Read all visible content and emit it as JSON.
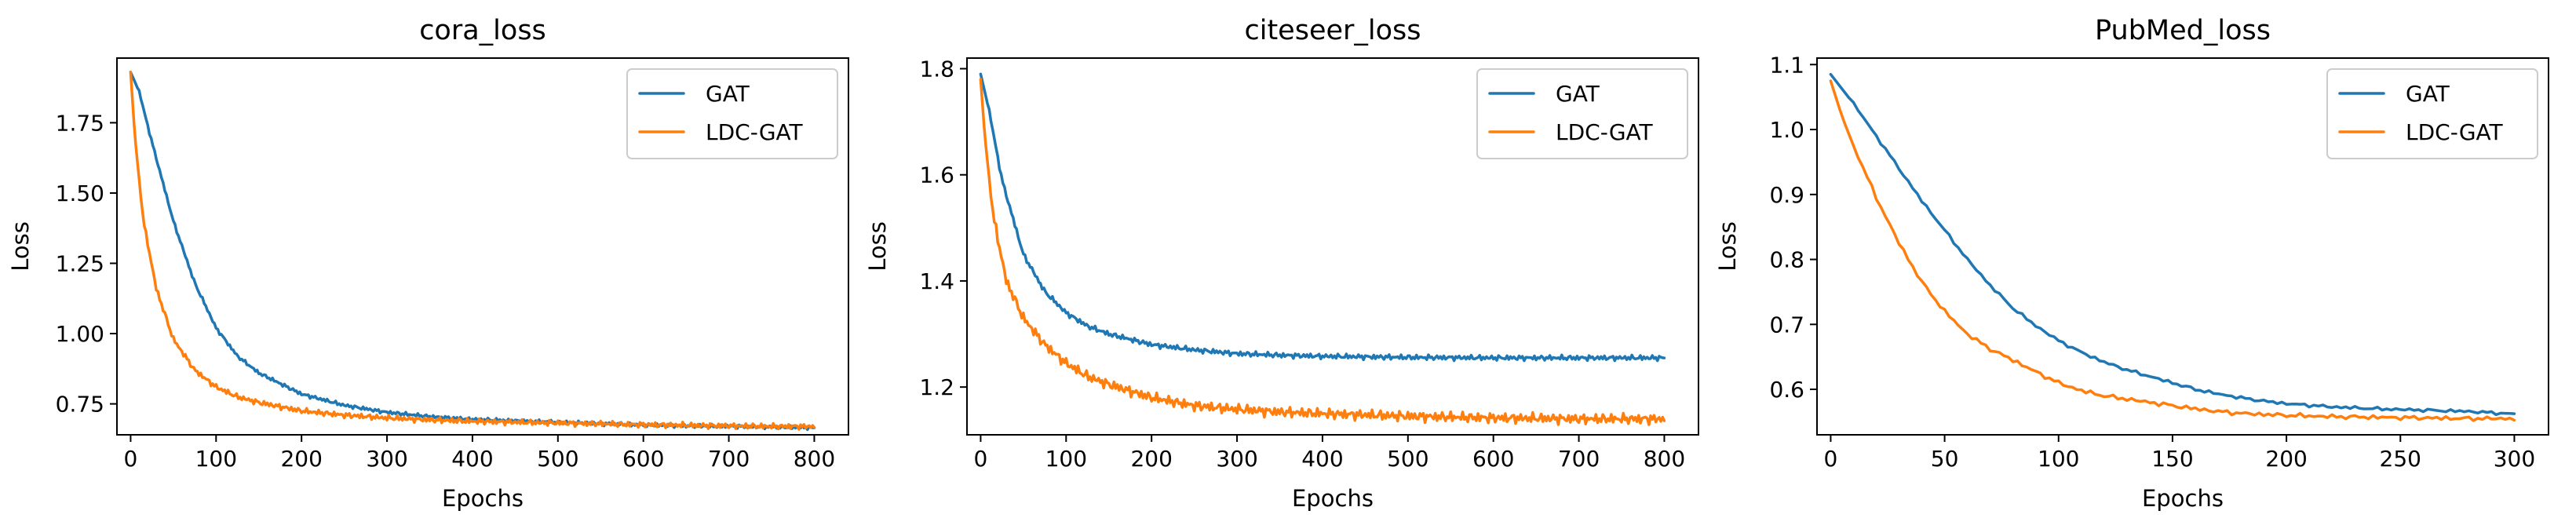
{
  "figure": {
    "background": "#ffffff"
  },
  "chart_data": [
    {
      "type": "line",
      "title": "cora_loss",
      "xlabel": "Epochs",
      "ylabel": "Loss",
      "xlim": [
        -16,
        840
      ],
      "ylim": [
        0.64,
        1.98
      ],
      "xticks": [
        0,
        100,
        200,
        300,
        400,
        500,
        600,
        700,
        800
      ],
      "xtick_labels": [
        "0",
        "100",
        "200",
        "300",
        "400",
        "500",
        "600",
        "700",
        "800"
      ],
      "yticks": [
        0.75,
        1.0,
        1.25,
        1.5,
        1.75
      ],
      "ytick_labels": [
        "0.75",
        "1.00",
        "1.25",
        "1.50",
        "1.75"
      ],
      "legend": {
        "position": "top-right",
        "entries": [
          "GAT",
          "LDC-GAT"
        ]
      },
      "series": [
        {
          "name": "GAT",
          "color": "#1f77b4",
          "noise": 0.004,
          "x": [
            0,
            10,
            25,
            50,
            75,
            100,
            125,
            150,
            200,
            250,
            300,
            350,
            400,
            450,
            500,
            550,
            600,
            650,
            700,
            750,
            800
          ],
          "y": [
            1.93,
            1.86,
            1.68,
            1.4,
            1.18,
            1.02,
            0.92,
            0.86,
            0.785,
            0.745,
            0.72,
            0.705,
            0.695,
            0.69,
            0.685,
            0.68,
            0.675,
            0.672,
            0.67,
            0.668,
            0.665
          ]
        },
        {
          "name": "LDC-GAT",
          "color": "#ff7f0e",
          "noise": 0.006,
          "x": [
            0,
            5,
            15,
            30,
            50,
            75,
            100,
            125,
            150,
            200,
            250,
            300,
            350,
            400,
            450,
            500,
            550,
            600,
            650,
            700,
            750,
            800
          ],
          "y": [
            1.93,
            1.7,
            1.4,
            1.16,
            0.98,
            0.87,
            0.81,
            0.775,
            0.755,
            0.725,
            0.71,
            0.7,
            0.693,
            0.688,
            0.685,
            0.682,
            0.679,
            0.676,
            0.674,
            0.672,
            0.67,
            0.67
          ]
        }
      ]
    },
    {
      "type": "line",
      "title": "citeseer_loss",
      "xlabel": "Epochs",
      "ylabel": "Loss",
      "xlim": [
        -16,
        840
      ],
      "ylim": [
        1.11,
        1.82
      ],
      "xticks": [
        0,
        100,
        200,
        300,
        400,
        500,
        600,
        700,
        800
      ],
      "xtick_labels": [
        "0",
        "100",
        "200",
        "300",
        "400",
        "500",
        "600",
        "700",
        "800"
      ],
      "yticks": [
        1.2,
        1.4,
        1.6,
        1.8
      ],
      "ytick_labels": [
        "1.2",
        "1.4",
        "1.6",
        "1.8"
      ],
      "legend": {
        "position": "top-right",
        "entries": [
          "GAT",
          "LDC-GAT"
        ]
      },
      "series": [
        {
          "name": "GAT",
          "color": "#1f77b4",
          "noise": 0.003,
          "x": [
            0,
            10,
            25,
            50,
            75,
            100,
            125,
            150,
            200,
            250,
            300,
            350,
            400,
            500,
            600,
            700,
            800
          ],
          "y": [
            1.79,
            1.72,
            1.59,
            1.45,
            1.38,
            1.34,
            1.315,
            1.3,
            1.28,
            1.27,
            1.263,
            1.26,
            1.258,
            1.256,
            1.255,
            1.255,
            1.255
          ]
        },
        {
          "name": "LDC-GAT",
          "color": "#ff7f0e",
          "noise": 0.006,
          "x": [
            0,
            5,
            15,
            30,
            50,
            75,
            100,
            125,
            150,
            200,
            250,
            300,
            350,
            400,
            500,
            600,
            700,
            800
          ],
          "y": [
            1.78,
            1.67,
            1.52,
            1.4,
            1.33,
            1.28,
            1.245,
            1.22,
            1.205,
            1.18,
            1.165,
            1.158,
            1.153,
            1.15,
            1.145,
            1.142,
            1.14,
            1.14
          ]
        }
      ]
    },
    {
      "type": "line",
      "title": "PubMed_loss",
      "xlabel": "Epochs",
      "ylabel": "Loss",
      "xlim": [
        -6,
        315
      ],
      "ylim": [
        0.53,
        1.11
      ],
      "xticks": [
        0,
        50,
        100,
        150,
        200,
        250,
        300
      ],
      "xtick_labels": [
        "0",
        "50",
        "100",
        "150",
        "200",
        "250",
        "300"
      ],
      "yticks": [
        0.6,
        0.7,
        0.8,
        0.9,
        1.0,
        1.1
      ],
      "ytick_labels": [
        "0.6",
        "0.7",
        "0.8",
        "0.9",
        "1.0",
        "1.1"
      ],
      "legend": {
        "position": "top-right",
        "entries": [
          "GAT",
          "LDC-GAT"
        ]
      },
      "series": [
        {
          "name": "GAT",
          "color": "#1f77b4",
          "noise": 0.0015,
          "x": [
            0,
            10,
            20,
            30,
            40,
            50,
            60,
            70,
            80,
            90,
            100,
            110,
            120,
            130,
            140,
            150,
            160,
            170,
            180,
            190,
            200,
            220,
            240,
            260,
            280,
            300
          ],
          "y": [
            1.085,
            1.04,
            0.99,
            0.94,
            0.89,
            0.845,
            0.8,
            0.76,
            0.725,
            0.698,
            0.675,
            0.657,
            0.642,
            0.63,
            0.62,
            0.61,
            0.6,
            0.593,
            0.587,
            0.582,
            0.578,
            0.573,
            0.57,
            0.568,
            0.566,
            0.562
          ]
        },
        {
          "name": "LDC-GAT",
          "color": "#ff7f0e",
          "noise": 0.002,
          "x": [
            0,
            5,
            10,
            20,
            30,
            40,
            50,
            60,
            70,
            80,
            90,
            100,
            110,
            120,
            130,
            140,
            150,
            160,
            170,
            180,
            200,
            220,
            240,
            260,
            280,
            300
          ],
          "y": [
            1.075,
            1.02,
            0.975,
            0.895,
            0.825,
            0.765,
            0.72,
            0.685,
            0.662,
            0.645,
            0.627,
            0.61,
            0.598,
            0.59,
            0.585,
            0.58,
            0.575,
            0.57,
            0.566,
            0.563,
            0.56,
            0.558,
            0.557,
            0.556,
            0.555,
            0.555
          ]
        }
      ]
    }
  ]
}
